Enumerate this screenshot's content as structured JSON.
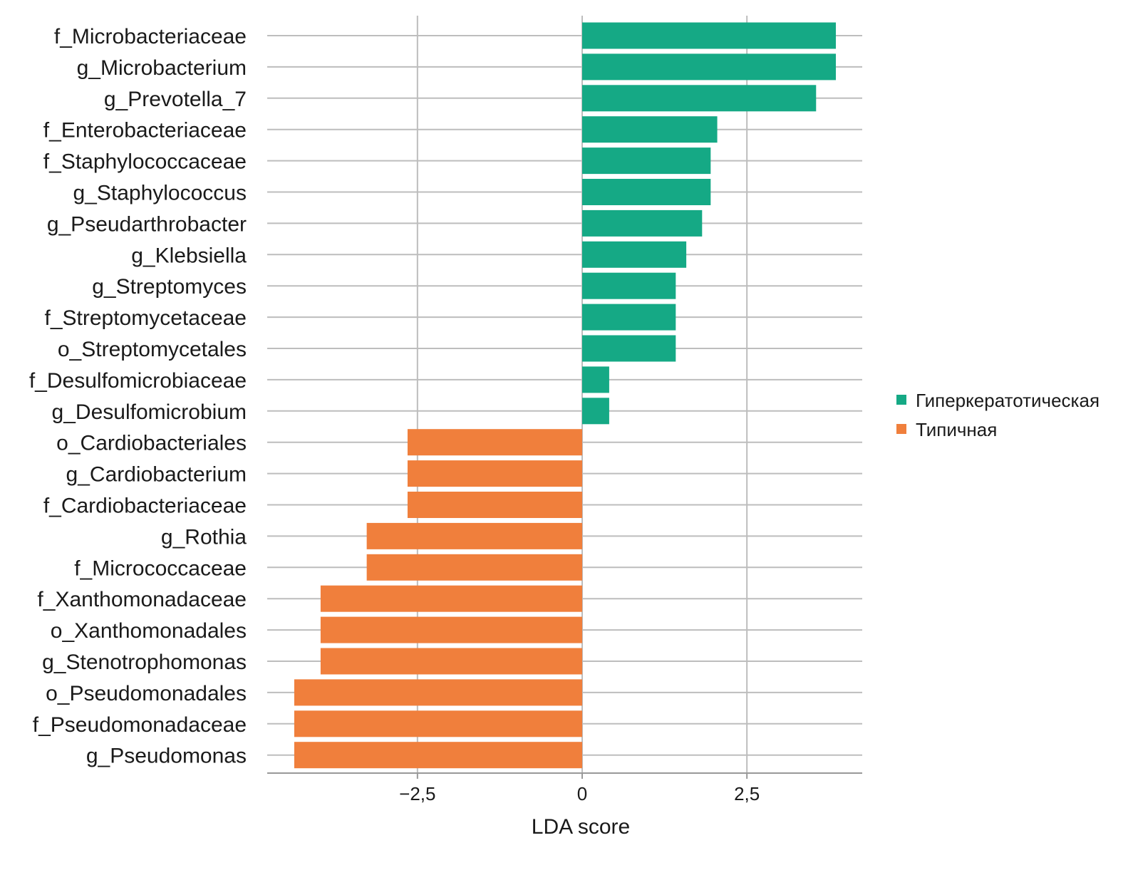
{
  "chart_data": {
    "type": "bar",
    "orientation": "horizontal",
    "title": "",
    "xlabel": "LDA score",
    "ylabel": "",
    "xlim": [
      -4.78,
      4.25
    ],
    "xticks": [
      -2.5,
      0,
      2.5
    ],
    "xtick_labels": [
      "−2,5",
      "0",
      "2,5"
    ],
    "grid": true,
    "legend_position": "right",
    "legend": [
      {
        "name": "Гиперкератотическая",
        "color": "#15a985"
      },
      {
        "name": "Типичная",
        "color": "#f07f3c"
      }
    ],
    "categories": [
      "f_Microbacteriaceae",
      "g_Microbacterium",
      "g_Prevotella_7",
      "f_Enterobacteriaceae",
      "f_Staphylococcaceae",
      "g_Staphylococcus",
      "g_Pseudarthrobacter",
      "g_Klebsiella",
      "g_Streptomyces",
      "f_Streptomycetaceae",
      "o_Streptomycetales",
      "f_Desulfomicrobiaceae",
      "g_Desulfomicrobium",
      "o_Cardiobacteriales",
      "g_Cardiobacterium",
      "f_Cardiobacteriaceae",
      "g_Rothia",
      "f_Micrococcaceae",
      "f_Xanthomonadaceae",
      "o_Xanthomonadales",
      "g_Stenotrophomonas",
      "o_Pseudomonadales",
      "f_Pseudomonadaceae",
      "g_Pseudomonas"
    ],
    "values": [
      3.85,
      3.85,
      3.55,
      2.05,
      1.95,
      1.95,
      1.82,
      1.58,
      1.42,
      1.42,
      1.42,
      0.41,
      0.41,
      -2.65,
      -2.65,
      -2.65,
      -3.27,
      -3.27,
      -3.97,
      -3.97,
      -3.97,
      -4.37,
      -4.37,
      -4.37
    ],
    "groups": [
      0,
      0,
      0,
      0,
      0,
      0,
      0,
      0,
      0,
      0,
      0,
      0,
      0,
      1,
      1,
      1,
      1,
      1,
      1,
      1,
      1,
      1,
      1,
      1
    ]
  }
}
